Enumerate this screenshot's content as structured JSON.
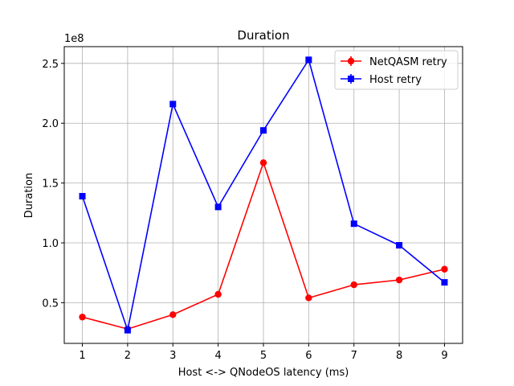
{
  "chart_data": {
    "type": "line",
    "title": "Duration",
    "xlabel": "Host <-> QNodeOS latency (ms)",
    "ylabel": "Duration",
    "y_scale_label": "1e8",
    "x": [
      1,
      2,
      3,
      4,
      5,
      6,
      7,
      8,
      9
    ],
    "xticks": [
      "1",
      "2",
      "3",
      "4",
      "5",
      "6",
      "7",
      "8",
      "9"
    ],
    "yticks": [
      {
        "value": 0.5,
        "label": "0.5"
      },
      {
        "value": 1.0,
        "label": "1.0"
      },
      {
        "value": 1.5,
        "label": "1.5"
      },
      {
        "value": 2.0,
        "label": "2.0"
      },
      {
        "value": 2.5,
        "label": "2.5"
      }
    ],
    "xlim": [
      0.6,
      9.4
    ],
    "ylim": [
      0.16,
      2.64
    ],
    "y_multiplier": 100000000,
    "grid": true,
    "legend_position": "top-right",
    "series": [
      {
        "name": "NetQASM retry",
        "color": "#ff0000",
        "marker": "circle",
        "values": [
          0.38,
          0.28,
          0.4,
          0.57,
          1.67,
          0.54,
          0.65,
          0.69,
          0.78
        ]
      },
      {
        "name": "Host retry",
        "color": "#0000ff",
        "marker": "square",
        "values": [
          1.39,
          0.27,
          2.16,
          1.3,
          1.94,
          2.53,
          1.16,
          0.98,
          0.67
        ]
      }
    ]
  }
}
